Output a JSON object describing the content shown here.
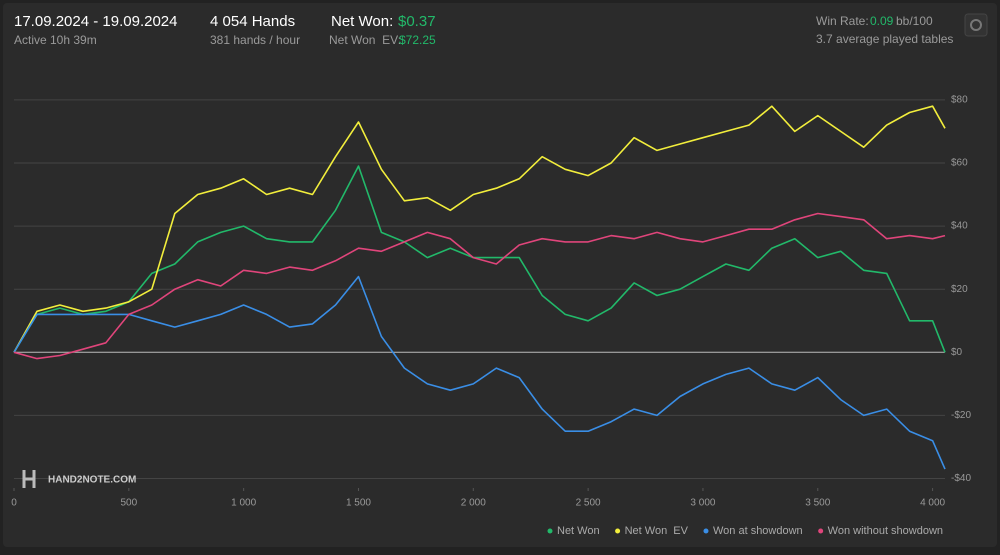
{
  "header": {
    "date_range": "17.09.2024 - 19.09.2024",
    "active": "Active 10h 39m",
    "hands": "4 054 Hands",
    "hands_per_hour": "381 hands / hour",
    "net_won_label": "Net Won:",
    "net_won": "$0.37",
    "net_won_ev_label": "Net Won  EV:",
    "net_won_ev": "$72.25",
    "win_rate_label": "Win Rate:",
    "win_rate": "0.09",
    "win_rate_unit": "bb/100",
    "tables": "3.7 average played tables"
  },
  "logo": "HAND2NOTE.COM",
  "chart_data": {
    "type": "line",
    "x": [
      0,
      100,
      200,
      300,
      400,
      500,
      600,
      700,
      800,
      900,
      1000,
      1100,
      1200,
      1300,
      1400,
      1500,
      1600,
      1700,
      1800,
      1900,
      2000,
      2100,
      2200,
      2300,
      2400,
      2500,
      2600,
      2700,
      2800,
      2900,
      3000,
      3100,
      3200,
      3300,
      3400,
      3500,
      3600,
      3700,
      3800,
      3900,
      4000,
      4054
    ],
    "series": [
      {
        "name": "Net Won",
        "color": "#22b96a",
        "values": [
          0,
          12,
          14,
          12,
          13,
          16,
          25,
          28,
          35,
          38,
          40,
          36,
          35,
          35,
          45,
          59,
          38,
          35,
          30,
          33,
          30,
          30,
          30,
          18,
          12,
          10,
          14,
          22,
          18,
          20,
          24,
          28,
          26,
          33,
          36,
          30,
          32,
          26,
          25,
          10,
          10,
          0
        ]
      },
      {
        "name": "Net Won  EV",
        "color": "#f2ee3c",
        "values": [
          0,
          13,
          15,
          13,
          14,
          16,
          20,
          44,
          50,
          52,
          55,
          50,
          52,
          50,
          62,
          73,
          58,
          48,
          49,
          45,
          50,
          52,
          55,
          62,
          58,
          56,
          60,
          68,
          64,
          66,
          68,
          70,
          72,
          78,
          70,
          75,
          70,
          65,
          72,
          76,
          78,
          71
        ]
      },
      {
        "name": "Won at showdown",
        "color": "#3a8ee6",
        "values": [
          0,
          12,
          12,
          12,
          12,
          12,
          10,
          8,
          10,
          12,
          15,
          12,
          8,
          9,
          15,
          24,
          5,
          -5,
          -10,
          -12,
          -10,
          -5,
          -8,
          -18,
          -25,
          -25,
          -22,
          -18,
          -20,
          -14,
          -10,
          -7,
          -5,
          -10,
          -12,
          -8,
          -15,
          -20,
          -18,
          -25,
          -28,
          -37
        ]
      },
      {
        "name": "Won without showdown",
        "color": "#e0457b",
        "values": [
          0,
          -2,
          -1,
          1,
          3,
          12,
          15,
          20,
          23,
          21,
          26,
          25,
          27,
          26,
          29,
          33,
          32,
          35,
          38,
          36,
          30,
          28,
          34,
          36,
          35,
          35,
          37,
          36,
          38,
          36,
          35,
          37,
          39,
          39,
          42,
          44,
          43,
          42,
          36,
          37,
          36,
          37
        ]
      }
    ],
    "xlim": [
      0,
      4054
    ],
    "xticks": [
      0,
      500,
      {
        "value": 1000,
        "label": "1 000"
      },
      {
        "value": 1500,
        "label": "1 500"
      },
      {
        "value": 2000,
        "label": "2 000"
      },
      {
        "value": 2500,
        "label": "2 500"
      },
      {
        "value": 3000,
        "label": "3 000"
      },
      {
        "value": 3500,
        "label": "3 500"
      },
      {
        "value": 4000,
        "label": "4 000"
      }
    ],
    "ylim": [
      -43,
      92
    ],
    "yticks": [
      {
        "value": -40,
        "label": "-$40"
      },
      {
        "value": -20,
        "label": "-$20"
      },
      {
        "value": 0,
        "label": "$0"
      },
      {
        "value": 20,
        "label": "$20"
      },
      {
        "value": 40,
        "label": "$40"
      },
      {
        "value": 60,
        "label": "$60"
      },
      {
        "value": 80,
        "label": "$80"
      }
    ],
    "grid": true
  }
}
